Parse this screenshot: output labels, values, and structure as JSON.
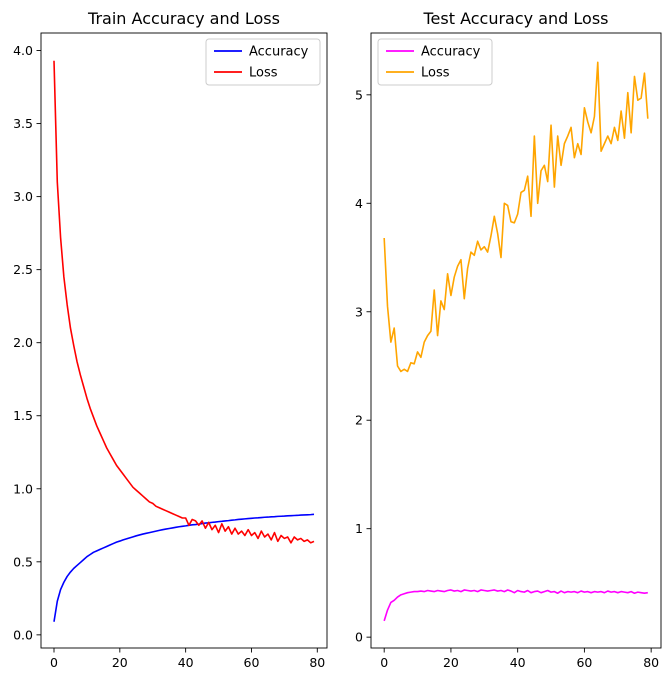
{
  "chart_data": [
    {
      "type": "line",
      "title": "Train Accuracy and Loss",
      "xlabel": "",
      "ylabel": "",
      "xlim": [
        -3.95,
        82.95
      ],
      "ylim": [
        -0.09,
        4.12
      ],
      "xticks": [
        0,
        20,
        40,
        60,
        80
      ],
      "xtick_labels": [
        "0",
        "20",
        "40",
        "60",
        "80"
      ],
      "yticks": [
        0.0,
        0.5,
        1.0,
        1.5,
        2.0,
        2.5,
        3.0,
        3.5,
        4.0
      ],
      "ytick_labels": [
        "0.0",
        "0.5",
        "1.0",
        "1.5",
        "2.0",
        "2.5",
        "3.0",
        "3.5",
        "4.0"
      ],
      "legend_position": "top-right",
      "grid": false,
      "series": [
        {
          "name": "Accuracy",
          "color": "#0000ff",
          "values": [
            0.09,
            0.23,
            0.31,
            0.36,
            0.4,
            0.43,
            0.455,
            0.475,
            0.495,
            0.515,
            0.535,
            0.55,
            0.565,
            0.575,
            0.585,
            0.595,
            0.605,
            0.615,
            0.625,
            0.635,
            0.642,
            0.65,
            0.657,
            0.664,
            0.671,
            0.678,
            0.684,
            0.69,
            0.695,
            0.7,
            0.705,
            0.71,
            0.715,
            0.72,
            0.724,
            0.728,
            0.732,
            0.736,
            0.74,
            0.743,
            0.746,
            0.75,
            0.753,
            0.755,
            0.758,
            0.762,
            0.765,
            0.767,
            0.77,
            0.772,
            0.775,
            0.777,
            0.78,
            0.782,
            0.785,
            0.787,
            0.79,
            0.792,
            0.794,
            0.796,
            0.798,
            0.8,
            0.801,
            0.803,
            0.805,
            0.806,
            0.808,
            0.809,
            0.811,
            0.812,
            0.813,
            0.815,
            0.816,
            0.817,
            0.818,
            0.82,
            0.821,
            0.822,
            0.823,
            0.825
          ]
        },
        {
          "name": "Loss",
          "color": "#ff0000",
          "values": [
            3.93,
            3.1,
            2.72,
            2.45,
            2.26,
            2.1,
            1.98,
            1.87,
            1.78,
            1.7,
            1.62,
            1.55,
            1.49,
            1.43,
            1.38,
            1.33,
            1.28,
            1.24,
            1.2,
            1.16,
            1.13,
            1.1,
            1.07,
            1.04,
            1.01,
            0.99,
            0.97,
            0.95,
            0.93,
            0.91,
            0.9,
            0.88,
            0.87,
            0.86,
            0.85,
            0.84,
            0.83,
            0.82,
            0.81,
            0.8,
            0.8,
            0.75,
            0.79,
            0.78,
            0.75,
            0.78,
            0.73,
            0.77,
            0.72,
            0.75,
            0.7,
            0.76,
            0.71,
            0.74,
            0.69,
            0.73,
            0.69,
            0.71,
            0.68,
            0.72,
            0.68,
            0.7,
            0.66,
            0.71,
            0.67,
            0.69,
            0.65,
            0.7,
            0.64,
            0.68,
            0.66,
            0.67,
            0.63,
            0.67,
            0.65,
            0.66,
            0.64,
            0.65,
            0.63,
            0.64
          ]
        }
      ]
    },
    {
      "type": "line",
      "title": "Test Accuracy and Loss",
      "xlabel": "",
      "ylabel": "",
      "xlim": [
        -3.95,
        82.95
      ],
      "ylim": [
        -0.1,
        5.57
      ],
      "xticks": [
        0,
        20,
        40,
        60,
        80
      ],
      "xtick_labels": [
        "0",
        "20",
        "40",
        "60",
        "80"
      ],
      "yticks": [
        0,
        1,
        2,
        3,
        4,
        5
      ],
      "ytick_labels": [
        "0",
        "1",
        "2",
        "3",
        "4",
        "5"
      ],
      "legend_position": "top-left",
      "grid": false,
      "series": [
        {
          "name": "Accuracy",
          "color": "#ff00ff",
          "values": [
            0.15,
            0.25,
            0.32,
            0.34,
            0.37,
            0.39,
            0.4,
            0.41,
            0.415,
            0.42,
            0.42,
            0.425,
            0.42,
            0.43,
            0.425,
            0.42,
            0.43,
            0.425,
            0.42,
            0.43,
            0.435,
            0.425,
            0.43,
            0.42,
            0.435,
            0.43,
            0.425,
            0.43,
            0.42,
            0.435,
            0.43,
            0.425,
            0.43,
            0.435,
            0.425,
            0.43,
            0.42,
            0.435,
            0.425,
            0.41,
            0.43,
            0.42,
            0.415,
            0.43,
            0.41,
            0.42,
            0.425,
            0.41,
            0.42,
            0.43,
            0.415,
            0.42,
            0.405,
            0.425,
            0.41,
            0.42,
            0.415,
            0.42,
            0.41,
            0.425,
            0.415,
            0.42,
            0.41,
            0.42,
            0.415,
            0.42,
            0.41,
            0.425,
            0.415,
            0.42,
            0.41,
            0.42,
            0.415,
            0.41,
            0.42,
            0.405,
            0.415,
            0.41,
            0.405,
            0.41
          ]
        },
        {
          "name": "Loss",
          "color": "#ffa500",
          "values": [
            3.68,
            3.05,
            2.72,
            2.85,
            2.5,
            2.45,
            2.47,
            2.45,
            2.53,
            2.52,
            2.63,
            2.58,
            2.72,
            2.78,
            2.82,
            3.2,
            2.78,
            3.1,
            3.02,
            3.35,
            3.15,
            3.32,
            3.42,
            3.48,
            3.12,
            3.4,
            3.55,
            3.52,
            3.65,
            3.57,
            3.6,
            3.55,
            3.7,
            3.88,
            3.72,
            3.5,
            4.0,
            3.98,
            3.83,
            3.82,
            3.9,
            4.1,
            4.12,
            4.25,
            3.88,
            4.62,
            4.0,
            4.3,
            4.35,
            4.2,
            4.72,
            4.15,
            4.62,
            4.35,
            4.55,
            4.62,
            4.7,
            4.42,
            4.55,
            4.45,
            4.88,
            4.75,
            4.65,
            4.8,
            5.3,
            4.48,
            4.55,
            4.62,
            4.55,
            4.7,
            4.58,
            4.85,
            4.6,
            5.02,
            4.65,
            5.17,
            4.95,
            4.97,
            5.2,
            4.78
          ]
        }
      ]
    }
  ]
}
